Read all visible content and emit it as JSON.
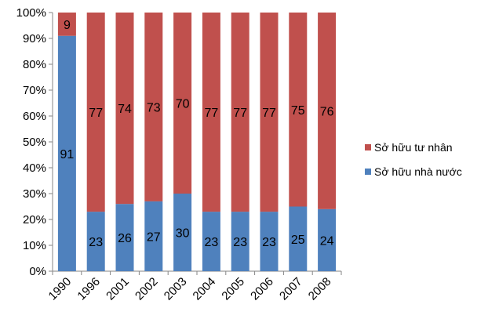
{
  "chart_data": {
    "type": "bar",
    "stacked": true,
    "percent": true,
    "categories": [
      "1990",
      "1996",
      "2001",
      "2002",
      "2003",
      "2004",
      "2005",
      "2006",
      "2007",
      "2008"
    ],
    "series": [
      {
        "name": "Sở hữu nhà nước",
        "values": [
          91,
          23,
          26,
          27,
          30,
          23,
          23,
          23,
          25,
          24
        ],
        "color": "#4F81BD"
      },
      {
        "name": "Sở hữu tư nhân",
        "values": [
          9,
          77,
          74,
          73,
          70,
          77,
          77,
          77,
          75,
          76
        ],
        "color": "#C0504D"
      }
    ],
    "y_ticks": [
      "0%",
      "10%",
      "20%",
      "30%",
      "40%",
      "50%",
      "60%",
      "70%",
      "80%",
      "90%",
      "100%"
    ],
    "ylim": [
      0,
      100
    ],
    "title": "",
    "xlabel": "",
    "ylabel": "",
    "grid": false,
    "legend_position": "right"
  }
}
